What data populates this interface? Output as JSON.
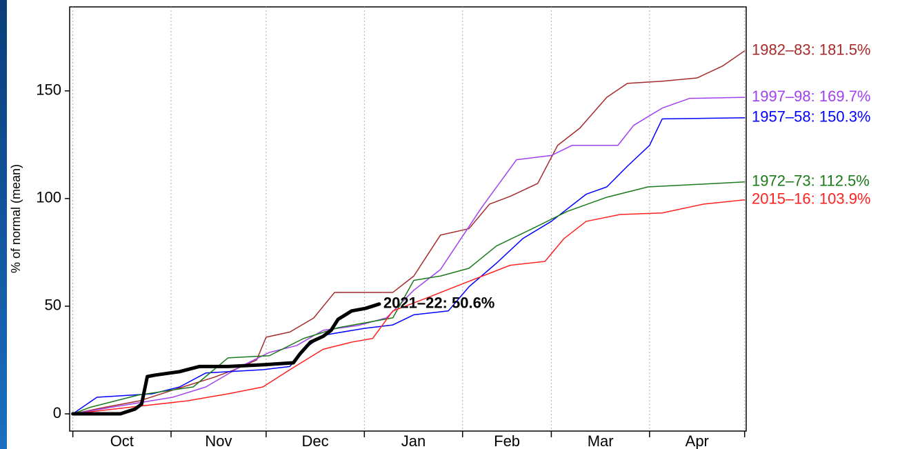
{
  "chart_data": {
    "type": "line",
    "ylabel": "% of normal (mean)",
    "categories": [
      "Oct",
      "Nov",
      "Dec",
      "Jan",
      "Feb",
      "Mar",
      "Apr"
    ],
    "xticks": [
      0,
      31,
      61,
      92,
      123,
      151,
      182,
      212
    ],
    "xlim": [
      -1,
      212.5
    ],
    "ylim": [
      -8,
      189
    ],
    "yticks": [
      0,
      50,
      100,
      150
    ],
    "grid": true,
    "series": [
      {
        "name": "1982–83: 181.5%",
        "color": "#a52a2a",
        "width": 1.5,
        "x": [
          0,
          10,
          21,
          31.5,
          44.6,
          51,
          58,
          61,
          68.5,
          76,
          82.6,
          101,
          107.6,
          116,
          125,
          131.5,
          138,
          146.7,
          153,
          160,
          168.5,
          175,
          186,
          197,
          205,
          212
        ],
        "values": [
          0,
          3,
          6,
          11,
          17,
          20.5,
          25,
          35.6,
          38,
          44.5,
          56.4,
          56.4,
          64,
          83,
          86,
          97.4,
          101,
          107,
          124.7,
          132.7,
          147,
          153.5,
          154.5,
          156,
          161.5,
          168.6
        ]
      },
      {
        "name": "1997–98: 169.7%",
        "color": "#a040f0",
        "width": 1.5,
        "x": [
          0,
          12,
          31.5,
          42,
          53,
          62,
          70.6,
          79,
          90,
          99,
          107.6,
          116,
          129,
          140,
          151,
          157.6,
          172,
          177,
          186,
          194.6,
          212
        ],
        "values": [
          0,
          3,
          7.7,
          12.5,
          22,
          28.5,
          31.7,
          38.8,
          41,
          44.6,
          57.4,
          67,
          95.8,
          118,
          120,
          124.7,
          124.7,
          134,
          142,
          146.5,
          147
        ]
      },
      {
        "name": "1957–58: 150.3%",
        "color": "#0000ff",
        "width": 1.5,
        "x": [
          0,
          7.6,
          25,
          33.7,
          42,
          60,
          68.5,
          72.8,
          79,
          92,
          101,
          107.6,
          118.5,
          125,
          133.7,
          142,
          151,
          162,
          168.5,
          175,
          182,
          186,
          212
        ],
        "values": [
          0,
          7.7,
          9.3,
          12.5,
          19,
          20.5,
          22,
          30,
          36.5,
          39.7,
          41.3,
          46,
          47.8,
          59,
          70,
          81.4,
          89.4,
          102,
          105.4,
          115,
          124.7,
          137,
          137.5
        ]
      },
      {
        "name": "1972–73: 112.5%",
        "color": "#1a7a1a",
        "width": 1.5,
        "x": [
          0,
          5.4,
          20.6,
          38,
          49,
          62,
          72.8,
          83.7,
          101,
          107.6,
          116,
          125,
          133.7,
          145,
          156,
          168.5,
          181.5,
          212
        ],
        "values": [
          0,
          3,
          8.7,
          12.5,
          26,
          27,
          35,
          40,
          44.6,
          62,
          64,
          67.6,
          78,
          86,
          94,
          100.6,
          105.4,
          107.7
        ]
      },
      {
        "name": "2015–16: 103.9%",
        "color": "#ff2020",
        "width": 1.5,
        "x": [
          0,
          20.6,
          36,
          49,
          60,
          68.5,
          79,
          88,
          94.6,
          101,
          112,
          120.6,
          138,
          149,
          155,
          162,
          172.8,
          186,
          199,
          212
        ],
        "values": [
          0,
          3.5,
          6,
          9.3,
          12.5,
          20.5,
          30,
          33.3,
          35,
          47.8,
          54,
          59,
          69,
          70.8,
          81.4,
          89.4,
          92.6,
          93.3,
          97.4,
          99.4
        ]
      },
      {
        "name": "2021–22: 50.6%",
        "color": "#000000",
        "width": 5,
        "x": [
          0,
          15,
          19.6,
          21.7,
          23.5,
          26,
          33.7,
          40,
          49,
          60,
          69.6,
          71.7,
          75,
          79,
          81.5,
          83.7,
          88,
          92.4,
          96.7
        ],
        "values": [
          0,
          0,
          2.2,
          4.5,
          17.3,
          18,
          19.6,
          22,
          22,
          22.8,
          23.7,
          27.9,
          33.3,
          36,
          38.8,
          43.9,
          47.8,
          49,
          51
        ]
      }
    ]
  }
}
